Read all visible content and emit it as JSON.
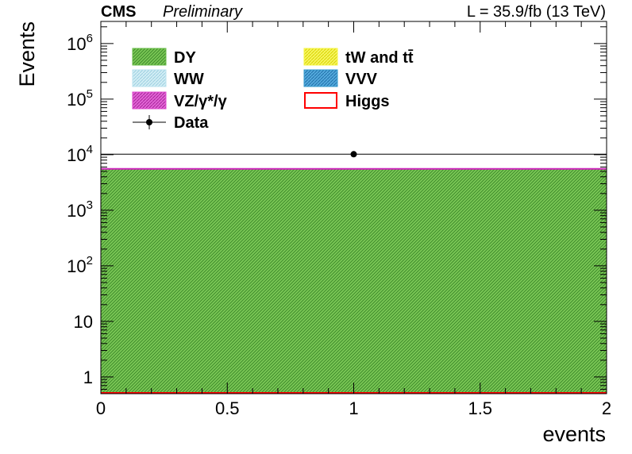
{
  "header": {
    "experiment": "CMS",
    "status": "Preliminary",
    "lumi": "L = 35.9/fb (13 TeV)"
  },
  "chart_data": {
    "type": "bar",
    "xlabel": "events",
    "ylabel": "Events",
    "xlim": [
      0,
      2
    ],
    "ylim": [
      0.5,
      2500000
    ],
    "yscale": "log",
    "x_ticks": [
      "0",
      "0.5",
      "1",
      "1.5",
      "2"
    ],
    "y_ticks": [
      {
        "value": 1,
        "label": "1"
      },
      {
        "value": 10,
        "label": "10"
      },
      {
        "value": 100,
        "label": "10",
        "exp": "2"
      },
      {
        "value": 1000,
        "label": "10",
        "exp": "3"
      },
      {
        "value": 10000,
        "label": "10",
        "exp": "4"
      },
      {
        "value": 100000,
        "label": "10",
        "exp": "5"
      },
      {
        "value": 1000000,
        "label": "10",
        "exp": "6"
      }
    ],
    "grid": false,
    "legend_position": "top-left",
    "bin_edges": [
      0,
      2
    ],
    "stack": [
      {
        "name": "DY",
        "value": 5400,
        "color": "#66bb44"
      },
      {
        "name": "VZ/γ*/γ",
        "value": 150,
        "color": "#dd44cc"
      },
      {
        "name": "Higgs",
        "value": 5,
        "color": "#ff0000"
      }
    ],
    "data_points": [
      {
        "x": 1,
        "y": 10200,
        "xerr": 1
      }
    ],
    "legend": [
      {
        "label": "DY",
        "color": "#66bb44",
        "style": "fill",
        "col": 0,
        "row": 0
      },
      {
        "label": "tW and tt̄",
        "color": "#f5f542",
        "style": "fill",
        "col": 1,
        "row": 0
      },
      {
        "label": "WW",
        "color": "#b8e2ee",
        "style": "fill",
        "col": 0,
        "row": 1
      },
      {
        "label": "VVV",
        "color": "#3399cc",
        "style": "fill",
        "col": 1,
        "row": 1
      },
      {
        "label": "VZ/γ*/γ",
        "color": "#dd44cc",
        "style": "fill",
        "col": 0,
        "row": 2
      },
      {
        "label": "Higgs",
        "color": "#ff0000",
        "style": "line",
        "col": 1,
        "row": 2
      },
      {
        "label": "Data",
        "color": "#000000",
        "style": "marker",
        "col": 0,
        "row": 3
      }
    ]
  }
}
